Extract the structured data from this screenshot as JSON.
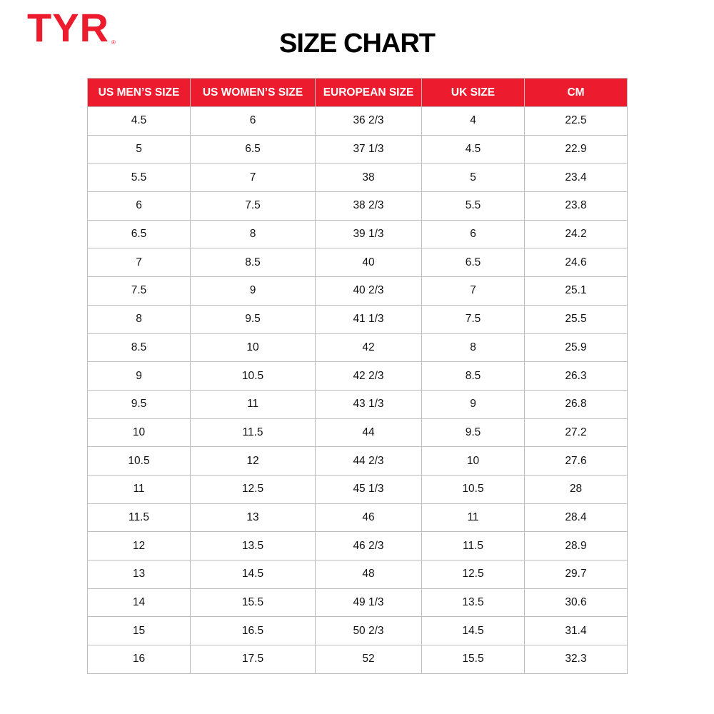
{
  "brand": {
    "logo_text": "TYR",
    "registered_mark": "®",
    "color": "#ec1c2e"
  },
  "title": "SIZE CHART",
  "table": {
    "headers": [
      "US MEN’S SIZE",
      "US WOMEN’S SIZE",
      "EUROPEAN SIZE",
      "UK SIZE",
      "CM"
    ],
    "rows": [
      [
        "4.5",
        "6",
        "36 2/3",
        "4",
        "22.5"
      ],
      [
        "5",
        "6.5",
        "37 1/3",
        "4.5",
        "22.9"
      ],
      [
        "5.5",
        "7",
        "38",
        "5",
        "23.4"
      ],
      [
        "6",
        "7.5",
        "38 2/3",
        "5.5",
        "23.8"
      ],
      [
        "6.5",
        "8",
        "39 1/3",
        "6",
        "24.2"
      ],
      [
        "7",
        "8.5",
        "40",
        "6.5",
        "24.6"
      ],
      [
        "7.5",
        "9",
        "40 2/3",
        "7",
        "25.1"
      ],
      [
        "8",
        "9.5",
        "41 1/3",
        "7.5",
        "25.5"
      ],
      [
        "8.5",
        "10",
        "42",
        "8",
        "25.9"
      ],
      [
        "9",
        "10.5",
        "42 2/3",
        "8.5",
        "26.3"
      ],
      [
        "9.5",
        "11",
        "43 1/3",
        "9",
        "26.8"
      ],
      [
        "10",
        "11.5",
        "44",
        "9.5",
        "27.2"
      ],
      [
        "10.5",
        "12",
        "44 2/3",
        "10",
        "27.6"
      ],
      [
        "11",
        "12.5",
        "45 1/3",
        "10.5",
        "28"
      ],
      [
        "11.5",
        "13",
        "46",
        "11",
        "28.4"
      ],
      [
        "12",
        "13.5",
        "46 2/3",
        "11.5",
        "28.9"
      ],
      [
        "13",
        "14.5",
        "48",
        "12.5",
        "29.7"
      ],
      [
        "14",
        "15.5",
        "49 1/3",
        "13.5",
        "30.6"
      ],
      [
        "15",
        "16.5",
        "50 2/3",
        "14.5",
        "31.4"
      ],
      [
        "16",
        "17.5",
        "52",
        "15.5",
        "32.3"
      ]
    ]
  }
}
